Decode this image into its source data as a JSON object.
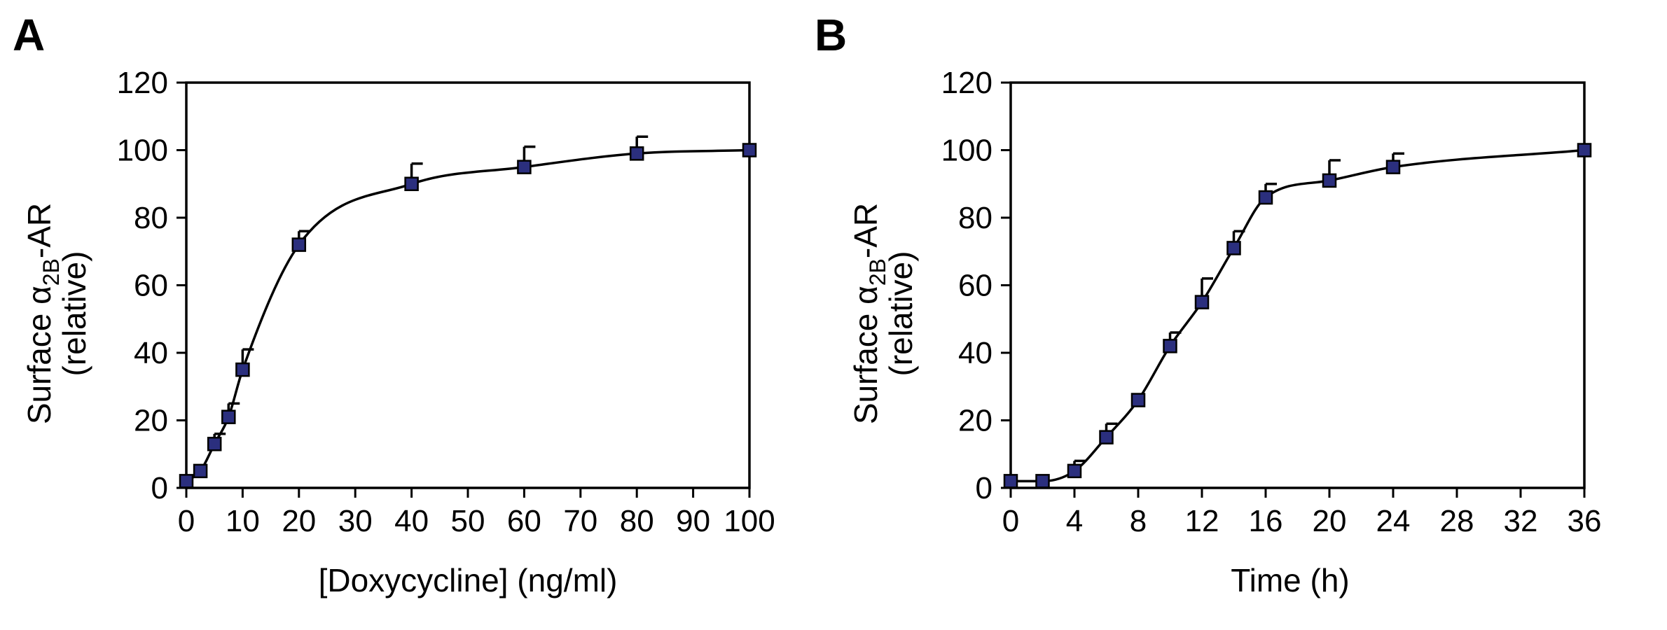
{
  "figure": {
    "marker_color": "#2b2f7e",
    "panels": [
      {
        "letter": "A",
        "ylabel_line1": "Surface α",
        "ylabel_sub": "2B",
        "ylabel_tail": "-AR",
        "ylabel_line2": "(relative)"
      },
      {
        "letter": "B",
        "ylabel_line1": "Surface α",
        "ylabel_sub": "2B",
        "ylabel_tail": "-AR",
        "ylabel_line2": "(relative)"
      }
    ]
  },
  "chart_data": [
    {
      "type": "line",
      "panel": "A",
      "title": "",
      "xlabel": "[Doxycycline] (ng/ml)",
      "ylabel": "Surface α2B-AR (relative)",
      "xlim": [
        0,
        100
      ],
      "ylim": [
        0,
        120
      ],
      "xticks": [
        0,
        10,
        20,
        30,
        40,
        50,
        60,
        70,
        80,
        90,
        100
      ],
      "yticks": [
        0,
        20,
        40,
        60,
        80,
        100,
        120
      ],
      "grid": false,
      "series": [
        {
          "x": [
            0,
            2.5,
            5,
            7.5,
            10,
            20,
            40,
            60,
            80,
            100
          ],
          "y": [
            2,
            5,
            13,
            21,
            35,
            72,
            90,
            95,
            99,
            100
          ],
          "error_up": [
            0,
            0,
            3,
            4,
            6,
            4,
            6,
            6,
            5,
            0
          ],
          "smooth": true
        }
      ]
    },
    {
      "type": "line",
      "panel": "B",
      "title": "",
      "xlabel": "Time (h)",
      "ylabel": "Surface α2B-AR (relative)",
      "xlim": [
        0,
        36
      ],
      "ylim": [
        0,
        120
      ],
      "xticks": [
        0,
        4,
        8,
        12,
        16,
        20,
        24,
        28,
        32,
        36
      ],
      "yticks": [
        0,
        20,
        40,
        60,
        80,
        100,
        120
      ],
      "grid": false,
      "series": [
        {
          "x": [
            0,
            2,
            4,
            6,
            8,
            10,
            12,
            14,
            16,
            20,
            24,
            36
          ],
          "y": [
            2,
            2,
            5,
            15,
            26,
            42,
            55,
            71,
            86,
            91,
            95,
            100
          ],
          "error_up": [
            0,
            0,
            3,
            4,
            0,
            4,
            7,
            5,
            4,
            6,
            4,
            0
          ],
          "smooth": true
        }
      ]
    }
  ]
}
